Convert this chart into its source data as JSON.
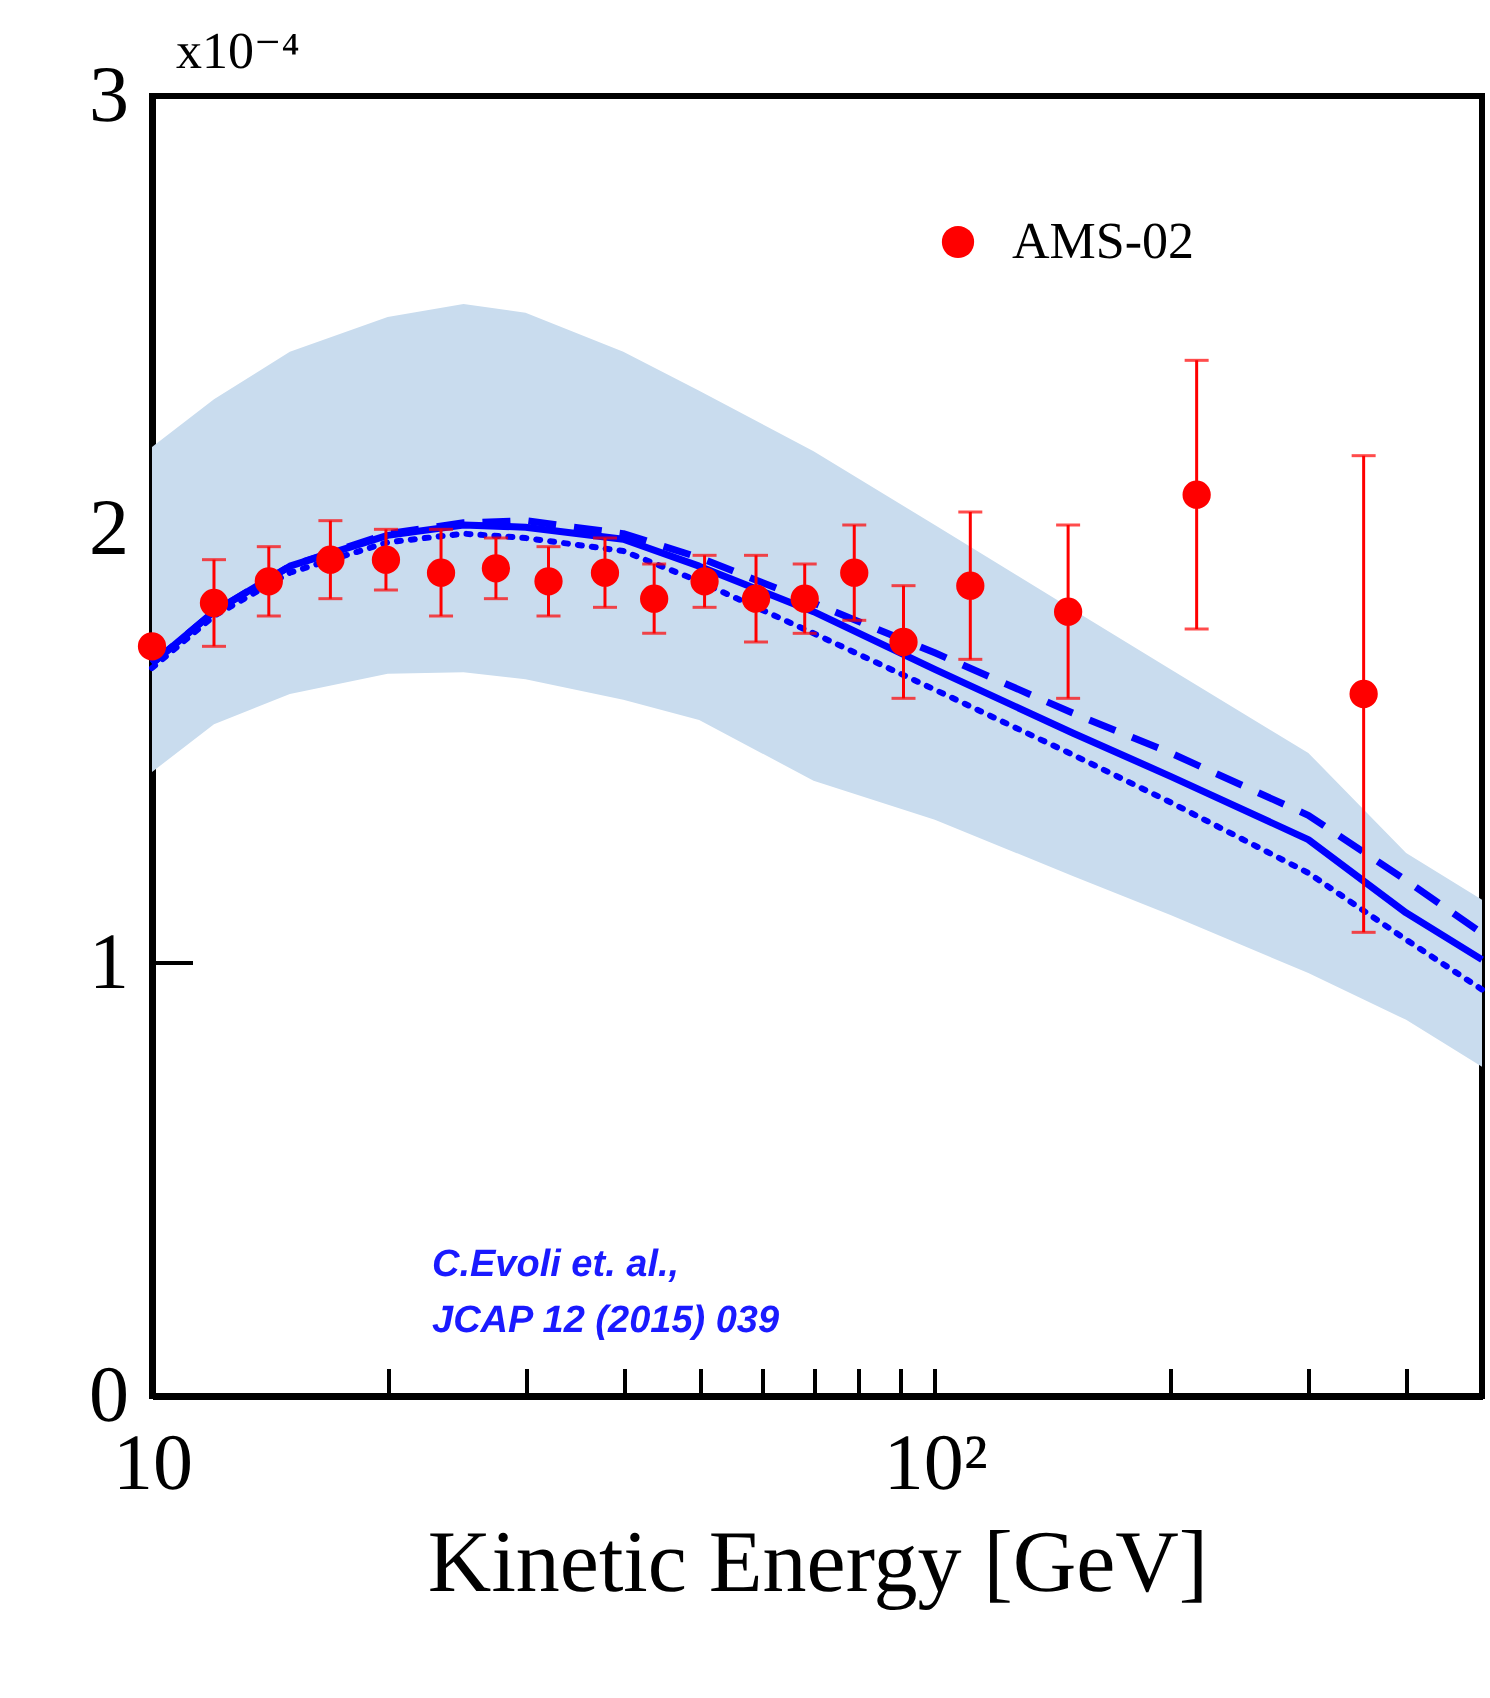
{
  "chart_data": {
    "type": "line",
    "xlabel": "Kinetic Energy [GeV]",
    "annotations": [
      "x10⁻⁴",
      "C.Evoli et. al.,",
      "JCAP 12 (2015) 039"
    ],
    "log": "x",
    "xlim": [
      10,
      500
    ],
    "ylim": [
      0,
      3
    ],
    "xticks": [
      10,
      {
        "value": 20,
        "label": null
      },
      {
        "value": 30,
        "label": null
      },
      {
        "value": 40,
        "label": null
      },
      {
        "value": 50,
        "label": null
      },
      {
        "value": 60,
        "label": null
      },
      {
        "value": 70,
        "label": null
      },
      {
        "value": 80,
        "label": null
      },
      {
        "value": 90,
        "label": null
      },
      {
        "value": 100,
        "label": "10²"
      },
      {
        "value": 200,
        "label": null
      },
      {
        "value": 300,
        "label": null
      },
      {
        "value": 400,
        "label": null
      }
    ],
    "yticks": [
      0,
      1,
      2,
      3
    ],
    "legend": "top right",
    "series": [
      {
        "color": "#0000ff",
        "line_style": "solid",
        "x": [
          10,
          12,
          15,
          20,
          25,
          30,
          40,
          50,
          70,
          100,
          150,
          200,
          300,
          400,
          500
        ],
        "values": [
          1.69,
          1.81,
          1.915,
          1.986,
          2.01,
          2.005,
          1.977,
          1.915,
          1.81,
          1.677,
          1.53,
          1.43,
          1.284,
          1.115,
          1.007
        ],
        "lower": [
          1.44,
          1.55,
          1.62,
          1.667,
          1.67,
          1.654,
          1.607,
          1.56,
          1.42,
          1.33,
          1.2,
          1.11,
          0.976,
          0.868,
          0.76
        ],
        "upper": [
          2.19,
          2.3,
          2.41,
          2.49,
          2.52,
          2.5,
          2.41,
          2.32,
          2.18,
          2.01,
          1.815,
          1.677,
          1.484,
          1.253,
          1.145
        ]
      },
      {
        "color": "#0000ff",
        "line_style": "dashed",
        "x": [
          10,
          12,
          15,
          20,
          25,
          30,
          40,
          50,
          70,
          100,
          150,
          200,
          300,
          400,
          500
        ],
        "values": [
          1.69,
          1.81,
          1.915,
          1.99,
          2.015,
          2.02,
          1.99,
          1.935,
          1.83,
          1.715,
          1.576,
          1.484,
          1.34,
          1.19,
          1.068
        ]
      },
      {
        "color": "#0000ff",
        "line_style": "dotted",
        "x": [
          10,
          12,
          15,
          20,
          25,
          30,
          40,
          50,
          70,
          100,
          150,
          200,
          300,
          400,
          500
        ],
        "values": [
          1.68,
          1.8,
          1.9,
          1.97,
          1.99,
          1.98,
          1.95,
          1.88,
          1.76,
          1.63,
          1.48,
          1.37,
          1.207,
          1.053,
          0.938
        ]
      },
      {
        "type": "scatter",
        "name": "AMS-02",
        "color": "#ff0000",
        "marker": "circle",
        "x": [
          10,
          12,
          14.1,
          16.9,
          19.9,
          23.4,
          27.5,
          32.1,
          37.9,
          43.8,
          50.8,
          59.1,
          68.2,
          78.9,
          91.2,
          111,
          148,
          216,
          353
        ],
        "values": [
          1.73,
          1.83,
          1.88,
          1.93,
          1.93,
          1.9,
          1.91,
          1.88,
          1.9,
          1.84,
          1.88,
          1.84,
          1.84,
          1.9,
          1.74,
          1.87,
          1.81,
          2.08,
          1.62
        ],
        "errors": [
          null,
          0.1,
          0.08,
          0.09,
          0.07,
          0.1,
          0.07,
          0.08,
          0.08,
          0.08,
          0.06,
          0.1,
          0.08,
          0.11,
          0.13,
          0.17,
          0.2,
          0.31,
          0.55
        ]
      }
    ]
  }
}
